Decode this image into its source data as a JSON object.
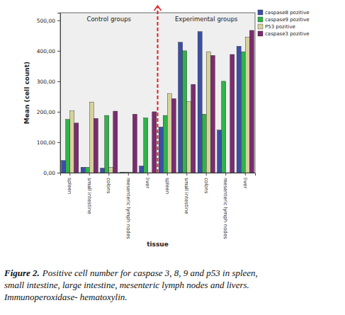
{
  "chart_data": {
    "type": "bar",
    "x_label": "tissue",
    "y_label": "Mean (cell count)",
    "categories": [
      "spleen",
      "small intestine",
      "colons",
      "mesenteric lymph nodes",
      "liver",
      "spleen",
      "small intestine",
      "colons",
      "mesenteric lymph nodes",
      "liver"
    ],
    "series": [
      {
        "name": "caspase8 pozitive",
        "color": "#3b4fa6",
        "values": [
          40,
          18,
          15,
          2,
          22,
          150,
          428,
          463,
          140,
          415
        ]
      },
      {
        "name": "caspase9 pozitive",
        "color": "#2fb34a",
        "values": [
          175,
          18,
          188,
          2,
          180,
          188,
          400,
          192,
          300,
          397
        ]
      },
      {
        "name": "P53 pozitive",
        "color": "#d6d29c",
        "values": [
          203,
          232,
          18,
          2,
          0,
          260,
          233,
          397,
          0,
          445
        ]
      },
      {
        "name": "caspase3 pozitive",
        "color": "#7c2c70",
        "values": [
          163,
          178,
          202,
          192,
          200,
          243,
          290,
          385,
          388,
          467
        ]
      }
    ],
    "ylim": [
      0,
      525
    ],
    "yticks": [
      {
        "value": 0,
        "label": "0,00"
      },
      {
        "value": 100,
        "label": "100,00"
      },
      {
        "value": 200,
        "label": "200,00"
      },
      {
        "value": 300,
        "label": "300,00"
      },
      {
        "value": 400,
        "label": "400,00"
      },
      {
        "value": 500,
        "label": "500,00"
      }
    ],
    "grid": false,
    "legend": "top-right",
    "annotations": [
      "Control groups",
      "Experimental groups"
    ]
  },
  "caption": {
    "label": "Figure 2.",
    "lines": [
      "Positive cell number for caspase 3, 8, 9 and p53 in spleen,",
      "small intestine, large intestine, mesenteric lymph nodes and livers.",
      "Immunoperoxidase- hematoxylin."
    ]
  }
}
